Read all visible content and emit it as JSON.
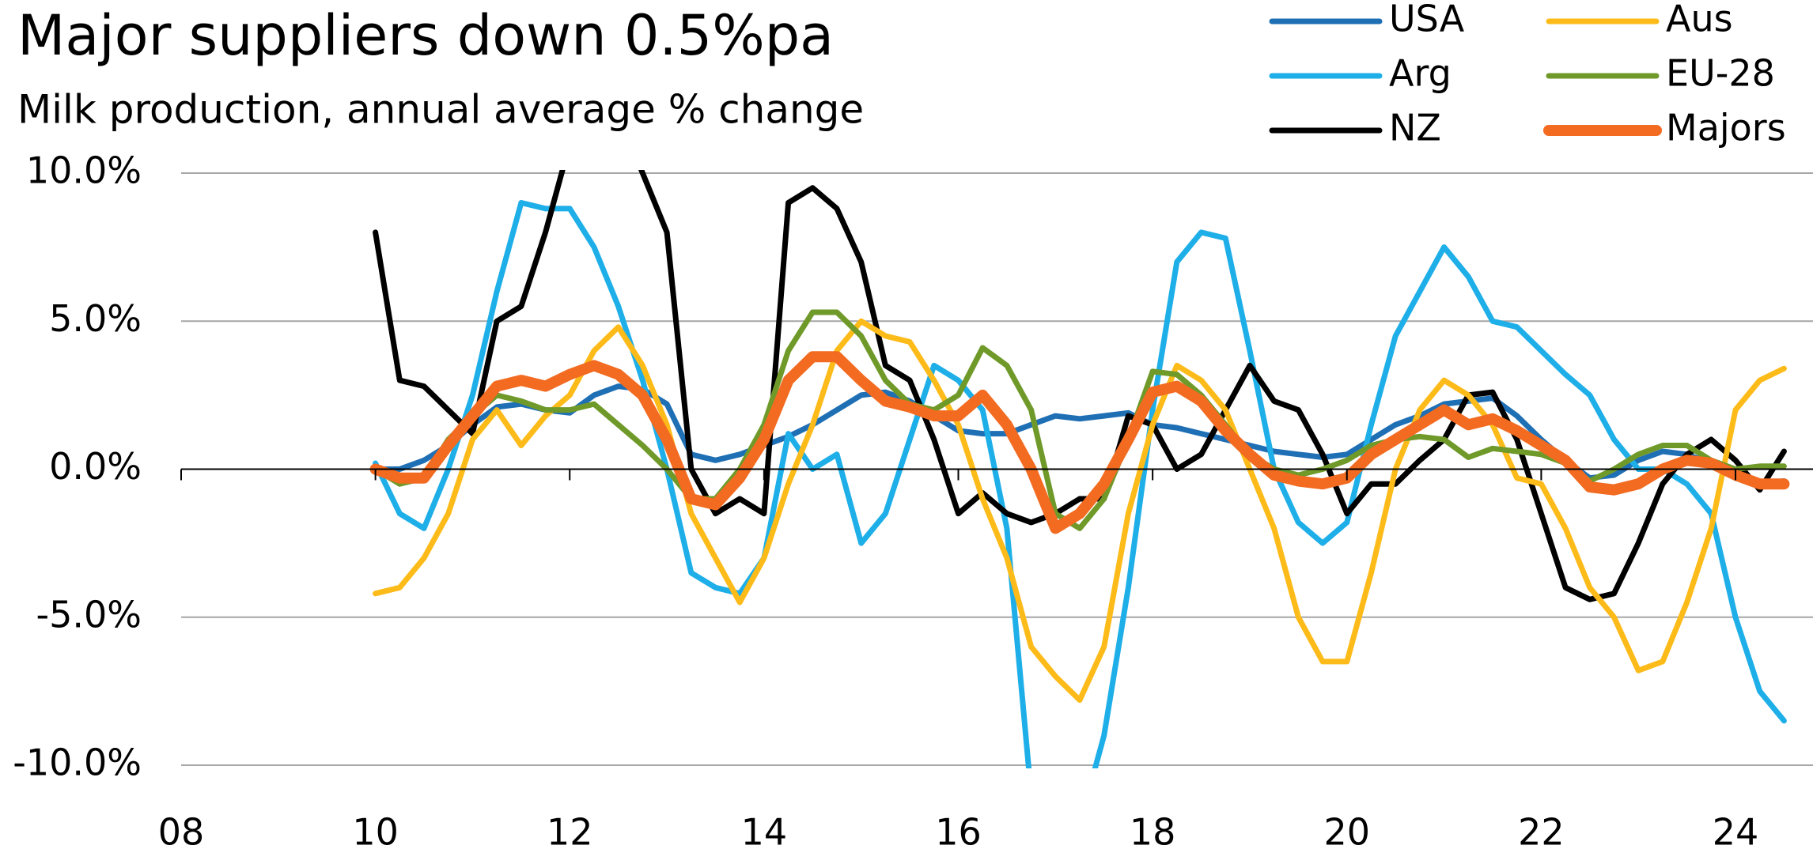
{
  "chart_data": {
    "type": "line",
    "title": "Major suppliers down 0.5%pa",
    "subtitle": "Milk production, annual average % change",
    "legend": "top-right",
    "grid": true,
    "x": [
      2010,
      2010.25,
      2010.5,
      2010.75,
      2011,
      2011.25,
      2011.5,
      2011.75,
      2012,
      2012.25,
      2012.5,
      2012.75,
      2013,
      2013.25,
      2013.5,
      2013.75,
      2014,
      2014.25,
      2014.5,
      2014.75,
      2015,
      2015.25,
      2015.5,
      2015.75,
      2016,
      2016.25,
      2016.5,
      2016.75,
      2017,
      2017.25,
      2017.5,
      2017.75,
      2018,
      2018.25,
      2018.5,
      2018.75,
      2019,
      2019.25,
      2019.5,
      2019.75,
      2020,
      2020.25,
      2020.5,
      2020.75,
      2021,
      2021.25,
      2021.5,
      2021.75,
      2022,
      2022.25,
      2022.5,
      2022.75,
      2023,
      2023.25,
      2023.5,
      2023.75,
      2024,
      2024.25,
      2024.5
    ],
    "xlim": [
      2008,
      2024.7
    ],
    "xticks": [
      {
        "value": 2008,
        "label": "08"
      },
      {
        "value": 2010,
        "label": "10"
      },
      {
        "value": 2012,
        "label": "12"
      },
      {
        "value": 2014,
        "label": "14"
      },
      {
        "value": 2016,
        "label": "16"
      },
      {
        "value": 2018,
        "label": "18"
      },
      {
        "value": 2020,
        "label": "20"
      },
      {
        "value": 2022,
        "label": "22"
      },
      {
        "value": 2024,
        "label": "24"
      }
    ],
    "ylim": [
      -10,
      10
    ],
    "yticks": [
      {
        "value": -10,
        "label": "-10.0%"
      },
      {
        "value": -5,
        "label": "-5.0%"
      },
      {
        "value": 0,
        "label": "0.0%"
      },
      {
        "value": 5,
        "label": "5.0%"
      },
      {
        "value": 10,
        "label": "10.0%"
      }
    ],
    "series": [
      {
        "name": "USA",
        "color": "#1f6fb5",
        "values": [
          0,
          0,
          0.3,
          0.8,
          1.5,
          2.1,
          2.2,
          2.0,
          1.9,
          2.5,
          2.8,
          2.7,
          2.2,
          0.5,
          0.3,
          0.5,
          0.8,
          1.1,
          1.5,
          2.0,
          2.5,
          2.6,
          2.3,
          1.8,
          1.3,
          1.2,
          1.2,
          1.5,
          1.8,
          1.7,
          1.8,
          1.9,
          1.5,
          1.4,
          1.2,
          1.0,
          0.8,
          0.6,
          0.5,
          0.4,
          0.5,
          1.0,
          1.5,
          1.8,
          2.2,
          2.3,
          2.4,
          1.8,
          1.0,
          0.3,
          -0.3,
          -0.2,
          0.3,
          0.6,
          0.5,
          0.2,
          -0.2,
          -0.5,
          -0.4
        ]
      },
      {
        "name": "Arg",
        "color": "#1eaee8",
        "values": [
          0.2,
          -1.5,
          -2,
          0,
          2.5,
          6,
          9,
          8.8,
          8.8,
          7.5,
          5.5,
          3,
          0,
          -3.5,
          -4,
          -4.2,
          -3,
          1.2,
          0,
          0.5,
          -2.5,
          -1.5,
          1,
          3.5,
          3,
          2,
          -2,
          -11,
          -14,
          -12,
          -9,
          -4,
          2,
          7,
          8,
          7.8,
          4,
          0,
          -1.8,
          -2.5,
          -1.8,
          1.5,
          4.5,
          6,
          7.5,
          6.5,
          5,
          4.8,
          4,
          3.2,
          2.5,
          1,
          0,
          0,
          -0.5,
          -1.5,
          -5,
          -7.5,
          -8.5
        ]
      },
      {
        "name": "NZ",
        "color": "#000000",
        "values": [
          8,
          3,
          2.8,
          2,
          1.2,
          5,
          5.5,
          8,
          11,
          13,
          12,
          10,
          8,
          0,
          -1.5,
          -1,
          -1.5,
          9,
          9.5,
          8.8,
          7,
          3.5,
          3,
          1,
          -1.5,
          -0.8,
          -1.5,
          -1.8,
          -1.5,
          -1,
          -1,
          1.8,
          1.5,
          0,
          0.5,
          2,
          3.5,
          2.3,
          2,
          0.5,
          -1.5,
          -0.5,
          -0.5,
          0.3,
          1,
          2.5,
          2.6,
          1,
          -1.5,
          -4,
          -4.4,
          -4.2,
          -2.5,
          -0.5,
          0.5,
          1,
          0.3,
          -0.7,
          0.6
        ]
      },
      {
        "name": "Aus",
        "color": "#fdbb1a",
        "values": [
          -4.2,
          -4,
          -3,
          -1.5,
          1,
          2,
          0.8,
          1.8,
          2.5,
          4,
          4.8,
          3.5,
          1.5,
          -1.5,
          -3,
          -4.5,
          -3,
          -0.5,
          1.5,
          4,
          5,
          4.5,
          4.3,
          3,
          1.5,
          -1,
          -3,
          -6,
          -7,
          -7.8,
          -6,
          -1.5,
          1.5,
          3.5,
          3,
          2,
          0,
          -2,
          -5,
          -6.5,
          -6.5,
          -3.5,
          0,
          2,
          3,
          2.5,
          1.5,
          -0.3,
          -0.5,
          -2,
          -4,
          -5,
          -6.8,
          -6.5,
          -4.5,
          -2,
          2,
          3,
          3.4
        ]
      },
      {
        "name": "EU-28",
        "color": "#6f9a2a",
        "values": [
          0,
          -0.5,
          -0.3,
          1,
          1.8,
          2.5,
          2.3,
          2,
          2,
          2.2,
          1.5,
          0.8,
          0,
          -1,
          -1,
          0,
          1.5,
          4,
          5.3,
          5.3,
          4.5,
          3,
          2.2,
          2,
          2.5,
          4.1,
          3.5,
          2,
          -1.5,
          -2,
          -1,
          1,
          3.3,
          3.2,
          2.5,
          1.5,
          0.5,
          0,
          -0.2,
          0,
          0.3,
          0.8,
          1,
          1.1,
          1.0,
          0.4,
          0.7,
          0.6,
          0.5,
          0.2,
          -0.4,
          0,
          0.5,
          0.8,
          0.8,
          0.3,
          0,
          0.1,
          0.1
        ]
      },
      {
        "name": "Majors",
        "color": "#f26b21",
        "values": [
          0,
          -0.3,
          -0.3,
          0.8,
          1.8,
          2.8,
          3,
          2.8,
          3.2,
          3.5,
          3.2,
          2.5,
          1,
          -1,
          -1.2,
          -0.3,
          1,
          3,
          3.8,
          3.8,
          3,
          2.3,
          2.1,
          1.8,
          1.8,
          2.5,
          1.5,
          0,
          -2,
          -1.5,
          -0.5,
          1,
          2.6,
          2.8,
          2.3,
          1.3,
          0.5,
          -0.2,
          -0.4,
          -0.5,
          -0.3,
          0.5,
          1,
          1.5,
          2,
          1.5,
          1.7,
          1.3,
          0.8,
          0.3,
          -0.6,
          -0.7,
          -0.5,
          0,
          0.3,
          0.2,
          -0.2,
          -0.5,
          -0.5
        ]
      }
    ]
  }
}
